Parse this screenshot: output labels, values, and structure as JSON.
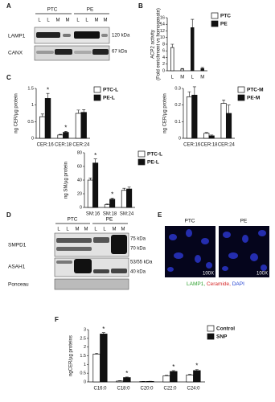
{
  "panel_labels": [
    "A",
    "B",
    "C",
    "D",
    "E",
    "F"
  ],
  "blot_a": {
    "groups": [
      "PTC",
      "PE"
    ],
    "lanes": [
      "L",
      "L",
      "M",
      "M",
      "L",
      "L",
      "M",
      "M"
    ],
    "rows": [
      "LAMP1",
      "CANX"
    ],
    "markers": [
      "120 kDa",
      "67 kDa"
    ]
  },
  "blot_d": {
    "groups": [
      "PTC",
      "PE"
    ],
    "lanes": [
      "L",
      "L",
      "M",
      "M",
      "L",
      "L",
      "M",
      "M"
    ],
    "rows": [
      "SMPD1",
      "ASAH1",
      "Ponceau"
    ],
    "markers": [
      "75 kDa",
      "70 kDa",
      "53/55 kDa",
      "40 kDa"
    ]
  },
  "micro": {
    "titles": [
      "PTC",
      "PE"
    ],
    "magnification": [
      "100X",
      "100X"
    ],
    "caption": [
      "LAMP1, ",
      "Ceramide, ",
      "DAPI"
    ]
  },
  "chart_data": [
    {
      "type": "bar",
      "y_label": [
        "ACP2 activity",
        "(Fold enrichment vs homogenate)"
      ],
      "categories": [
        "L",
        "M",
        "L",
        "M"
      ],
      "series": [
        {
          "name": "PTC",
          "color": "#ffffff",
          "values": [
            7,
            0.5,
            null,
            null
          ],
          "errors": [
            1,
            0.2,
            null,
            null
          ]
        },
        {
          "name": "PE",
          "color": "#111111",
          "values": [
            null,
            null,
            13,
            0.7
          ],
          "errors": [
            null,
            null,
            2.5,
            0.3
          ]
        }
      ],
      "ylim": [
        0,
        16
      ],
      "yticks": [
        0,
        2,
        4,
        6,
        8,
        10,
        12,
        14,
        16
      ],
      "significance": [
        null,
        null,
        null,
        null
      ]
    },
    {
      "type": "bar",
      "y_label": [
        "ng CER/µg protein"
      ],
      "categories": [
        "CER:16",
        "CER:18",
        "CER:24"
      ],
      "series": [
        {
          "name": "PTC-L",
          "color": "#ffffff",
          "values": [
            0.65,
            0.1,
            0.75
          ],
          "errors": [
            0.08,
            0.02,
            0.1
          ]
        },
        {
          "name": "PE-L",
          "color": "#111111",
          "values": [
            1.2,
            0.18,
            0.78
          ],
          "errors": [
            0.15,
            0.03,
            0.08
          ]
        }
      ],
      "ylim": [
        0,
        1.5
      ],
      "yticks": [
        0,
        0.5,
        1,
        1.5
      ],
      "significance": [
        "*",
        "*",
        null
      ]
    },
    {
      "type": "bar",
      "y_label": [
        "ng CER/µg protein"
      ],
      "categories": [
        "CER:16",
        "CER:18",
        "CER:24"
      ],
      "series": [
        {
          "name": "PTC-M",
          "color": "#ffffff",
          "values": [
            0.25,
            0.03,
            0.21
          ],
          "errors": [
            0.03,
            0.005,
            0.02
          ]
        },
        {
          "name": "PE-M",
          "color": "#111111",
          "values": [
            0.26,
            0.015,
            0.15
          ],
          "errors": [
            0.05,
            0.005,
            0.05
          ]
        }
      ],
      "ylim": [
        0,
        0.3
      ],
      "yticks": [
        0,
        0.1,
        0.2,
        0.3
      ],
      "significance": [
        null,
        null,
        null
      ]
    },
    {
      "type": "bar",
      "y_label": [
        "ng SM/µg protein"
      ],
      "categories": [
        "SM:16",
        "SM:18",
        "SM:24"
      ],
      "series": [
        {
          "name": "PTC-L",
          "color": "#ffffff",
          "values": [
            40,
            4,
            25
          ],
          "errors": [
            3,
            1,
            3
          ]
        },
        {
          "name": "PE-L",
          "color": "#111111",
          "values": [
            65,
            12,
            27
          ],
          "errors": [
            6,
            1.5,
            3
          ]
        }
      ],
      "ylim": [
        0,
        80
      ],
      "yticks": [
        0,
        20,
        40,
        60,
        80
      ],
      "significance": [
        "*",
        "*",
        null
      ]
    },
    {
      "type": "bar",
      "y_label": [
        "ngCER/µg proteins"
      ],
      "categories": [
        "C16:0",
        "C18:0",
        "C20:0",
        "C22:0",
        "C24:0"
      ],
      "series": [
        {
          "name": "Control",
          "color": "#ffffff",
          "values": [
            1.6,
            0.05,
            0.02,
            0.35,
            0.4
          ],
          "errors": [
            0.05,
            0.02,
            0.01,
            0.03,
            0.03
          ]
        },
        {
          "name": "SNP",
          "color": "#111111",
          "values": [
            2.75,
            0.25,
            0.03,
            0.6,
            0.65
          ],
          "errors": [
            0.08,
            0.03,
            0.01,
            0.05,
            0.06
          ]
        }
      ],
      "ylim": [
        0,
        3
      ],
      "yticks": [
        0,
        0.5,
        1,
        1.5,
        2,
        2.5,
        3
      ],
      "significance": [
        "*",
        "*",
        null,
        "*",
        "*"
      ]
    }
  ]
}
